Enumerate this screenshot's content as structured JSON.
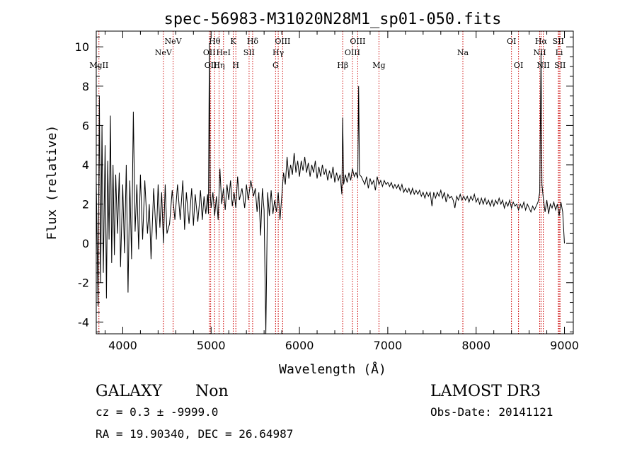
{
  "chart_data": {
    "type": "line",
    "title": "spec-56983-M31020N28M1_sp01-050.fits",
    "xlabel": "Wavelength (Å)",
    "ylabel": "Flux (relative)",
    "xlim": [
      3700,
      9100
    ],
    "ylim": [
      -4.6,
      10.8
    ],
    "xticks": [
      4000,
      5000,
      6000,
      7000,
      8000,
      9000
    ],
    "yticks": [
      -4,
      -2,
      0,
      2,
      4,
      6,
      8,
      10
    ],
    "xtick_labels": [
      "4000",
      "5000",
      "6000",
      "7000",
      "8000",
      "9000"
    ],
    "ytick_labels": [
      "-4",
      "-2",
      "0",
      "2",
      "4",
      "6",
      "8",
      "10"
    ],
    "grid": false,
    "series": [
      {
        "name": "spectrum",
        "color": "#000000",
        "points": [
          [
            3700,
            3.2
          ],
          [
            3720,
            -3.2
          ],
          [
            3735,
            7.5
          ],
          [
            3750,
            -2.0
          ],
          [
            3765,
            6.0
          ],
          [
            3780,
            -1.5
          ],
          [
            3800,
            5.0
          ],
          [
            3815,
            -2.8
          ],
          [
            3830,
            4.2
          ],
          [
            3845,
            0.2
          ],
          [
            3860,
            6.5
          ],
          [
            3875,
            -1.0
          ],
          [
            3890,
            4.0
          ],
          [
            3905,
            -0.6
          ],
          [
            3920,
            3.5
          ],
          [
            3940,
            0.5
          ],
          [
            3960,
            3.6
          ],
          [
            3975,
            -1.2
          ],
          [
            4000,
            3.0
          ],
          [
            4020,
            -0.5
          ],
          [
            4040,
            4.0
          ],
          [
            4060,
            -2.5
          ],
          [
            4080,
            3.2
          ],
          [
            4100,
            -0.8
          ],
          [
            4120,
            6.7
          ],
          [
            4140,
            0.6
          ],
          [
            4160,
            3.0
          ],
          [
            4180,
            -0.3
          ],
          [
            4200,
            3.5
          ],
          [
            4225,
            0.2
          ],
          [
            4250,
            3.2
          ],
          [
            4280,
            0.5
          ],
          [
            4300,
            2.0
          ],
          [
            4320,
            -0.8
          ],
          [
            4350,
            2.8
          ],
          [
            4380,
            0.2
          ],
          [
            4400,
            3.0
          ],
          [
            4420,
            0.8
          ],
          [
            4440,
            2.6
          ],
          [
            4460,
            0.0
          ],
          [
            4480,
            3.0
          ],
          [
            4500,
            0.5
          ],
          [
            4530,
            1.0
          ],
          [
            4560,
            2.7
          ],
          [
            4590,
            1.2
          ],
          [
            4620,
            3.0
          ],
          [
            4650,
            1.2
          ],
          [
            4680,
            3.2
          ],
          [
            4700,
            0.7
          ],
          [
            4720,
            2.6
          ],
          [
            4750,
            1.0
          ],
          [
            4780,
            2.8
          ],
          [
            4800,
            0.9
          ],
          [
            4820,
            2.5
          ],
          [
            4850,
            1.1
          ],
          [
            4880,
            2.7
          ],
          [
            4900,
            1.2
          ],
          [
            4920,
            2.4
          ],
          [
            4940,
            1.5
          ],
          [
            4960,
            2.5
          ],
          [
            4970,
            1.5
          ],
          [
            4980,
            10.2
          ],
          [
            4990,
            2.5
          ],
          [
            5000,
            1.8
          ],
          [
            5020,
            2.6
          ],
          [
            5040,
            1.4
          ],
          [
            5060,
            2.4
          ],
          [
            5080,
            1.2
          ],
          [
            5100,
            3.8
          ],
          [
            5120,
            2.0
          ],
          [
            5140,
            2.8
          ],
          [
            5160,
            1.7
          ],
          [
            5180,
            3.0
          ],
          [
            5200,
            2.2
          ],
          [
            5220,
            3.2
          ],
          [
            5240,
            1.9
          ],
          [
            5260,
            2.6
          ],
          [
            5280,
            1.8
          ],
          [
            5300,
            3.4
          ],
          [
            5320,
            2.2
          ],
          [
            5350,
            2.8
          ],
          [
            5380,
            1.8
          ],
          [
            5400,
            3.0
          ],
          [
            5420,
            2.2
          ],
          [
            5450,
            3.2
          ],
          [
            5480,
            2.4
          ],
          [
            5500,
            2.8
          ],
          [
            5520,
            1.6
          ],
          [
            5540,
            2.6
          ],
          [
            5560,
            0.4
          ],
          [
            5580,
            2.8
          ],
          [
            5600,
            1.7
          ],
          [
            5620,
            -4.6
          ],
          [
            5640,
            2.6
          ],
          [
            5660,
            1.4
          ],
          [
            5680,
            2.7
          ],
          [
            5700,
            1.5
          ],
          [
            5720,
            2.2
          ],
          [
            5740,
            1.6
          ],
          [
            5760,
            2.6
          ],
          [
            5780,
            1.2
          ],
          [
            5800,
            2.4
          ],
          [
            5820,
            3.6
          ],
          [
            5840,
            3.0
          ],
          [
            5860,
            4.4
          ],
          [
            5880,
            3.3
          ],
          [
            5900,
            4.0
          ],
          [
            5920,
            3.5
          ],
          [
            5940,
            4.6
          ],
          [
            5960,
            3.6
          ],
          [
            5980,
            4.2
          ],
          [
            6000,
            3.4
          ],
          [
            6020,
            4.2
          ],
          [
            6040,
            3.7
          ],
          [
            6060,
            4.4
          ],
          [
            6080,
            3.6
          ],
          [
            6100,
            4.1
          ],
          [
            6120,
            3.4
          ],
          [
            6140,
            4.0
          ],
          [
            6160,
            3.6
          ],
          [
            6180,
            4.2
          ],
          [
            6200,
            3.3
          ],
          [
            6220,
            3.9
          ],
          [
            6240,
            3.4
          ],
          [
            6260,
            4.0
          ],
          [
            6280,
            3.5
          ],
          [
            6300,
            3.8
          ],
          [
            6320,
            3.2
          ],
          [
            6340,
            3.7
          ],
          [
            6360,
            3.3
          ],
          [
            6380,
            3.9
          ],
          [
            6400,
            3.1
          ],
          [
            6420,
            3.6
          ],
          [
            6440,
            3.2
          ],
          [
            6460,
            3.5
          ],
          [
            6480,
            2.5
          ],
          [
            6490,
            6.4
          ],
          [
            6500,
            3.0
          ],
          [
            6520,
            3.5
          ],
          [
            6540,
            3.1
          ],
          [
            6560,
            3.6
          ],
          [
            6580,
            3.2
          ],
          [
            6600,
            3.8
          ],
          [
            6620,
            3.4
          ],
          [
            6640,
            3.6
          ],
          [
            6660,
            3.3
          ],
          [
            6670,
            8.0
          ],
          [
            6680,
            3.5
          ],
          [
            6700,
            3.4
          ],
          [
            6720,
            3.2
          ],
          [
            6740,
            3.0
          ],
          [
            6760,
            3.4
          ],
          [
            6780,
            2.8
          ],
          [
            6800,
            3.3
          ],
          [
            6820,
            3.0
          ],
          [
            6840,
            3.2
          ],
          [
            6860,
            2.7
          ],
          [
            6880,
            3.4
          ],
          [
            6900,
            3.0
          ],
          [
            6920,
            3.2
          ],
          [
            6940,
            2.9
          ],
          [
            6960,
            3.2
          ],
          [
            6980,
            3.0
          ],
          [
            7000,
            3.1
          ],
          [
            7020,
            2.9
          ],
          [
            7040,
            3.1
          ],
          [
            7060,
            2.8
          ],
          [
            7080,
            3.0
          ],
          [
            7100,
            2.8
          ],
          [
            7120,
            3.0
          ],
          [
            7140,
            2.7
          ],
          [
            7160,
            3.0
          ],
          [
            7180,
            2.6
          ],
          [
            7200,
            2.8
          ],
          [
            7220,
            2.6
          ],
          [
            7240,
            2.8
          ],
          [
            7260,
            2.5
          ],
          [
            7280,
            2.8
          ],
          [
            7300,
            2.5
          ],
          [
            7320,
            2.7
          ],
          [
            7340,
            2.5
          ],
          [
            7360,
            2.7
          ],
          [
            7380,
            2.4
          ],
          [
            7400,
            2.6
          ],
          [
            7420,
            2.3
          ],
          [
            7440,
            2.6
          ],
          [
            7460,
            2.4
          ],
          [
            7480,
            2.6
          ],
          [
            7500,
            1.9
          ],
          [
            7520,
            2.6
          ],
          [
            7540,
            2.3
          ],
          [
            7560,
            2.6
          ],
          [
            7580,
            2.4
          ],
          [
            7600,
            2.7
          ],
          [
            7620,
            2.3
          ],
          [
            7640,
            2.6
          ],
          [
            7660,
            2.1
          ],
          [
            7680,
            2.5
          ],
          [
            7700,
            2.3
          ],
          [
            7720,
            2.4
          ],
          [
            7740,
            2.2
          ],
          [
            7760,
            1.8
          ],
          [
            7780,
            2.4
          ],
          [
            7800,
            2.2
          ],
          [
            7820,
            2.5
          ],
          [
            7840,
            2.2
          ],
          [
            7860,
            2.4
          ],
          [
            7880,
            2.2
          ],
          [
            7900,
            2.4
          ],
          [
            7920,
            2.1
          ],
          [
            7940,
            2.4
          ],
          [
            7960,
            2.2
          ],
          [
            7980,
            2.5
          ],
          [
            8000,
            2.1
          ],
          [
            8020,
            2.3
          ],
          [
            8040,
            2.0
          ],
          [
            8060,
            2.3
          ],
          [
            8080,
            2.0
          ],
          [
            8100,
            2.3
          ],
          [
            8120,
            2.0
          ],
          [
            8140,
            2.2
          ],
          [
            8160,
            1.9
          ],
          [
            8180,
            2.2
          ],
          [
            8200,
            1.9
          ],
          [
            8220,
            2.2
          ],
          [
            8240,
            2.0
          ],
          [
            8260,
            2.3
          ],
          [
            8280,
            2.0
          ],
          [
            8300,
            2.2
          ],
          [
            8320,
            1.8
          ],
          [
            8340,
            2.1
          ],
          [
            8360,
            1.9
          ],
          [
            8380,
            2.2
          ],
          [
            8400,
            1.8
          ],
          [
            8420,
            2.1
          ],
          [
            8440,
            1.9
          ],
          [
            8460,
            2.0
          ],
          [
            8480,
            1.7
          ],
          [
            8500,
            2.0
          ],
          [
            8520,
            1.8
          ],
          [
            8540,
            2.1
          ],
          [
            8560,
            1.7
          ],
          [
            8580,
            2.0
          ],
          [
            8600,
            1.8
          ],
          [
            8620,
            1.6
          ],
          [
            8640,
            1.9
          ],
          [
            8660,
            1.7
          ],
          [
            8680,
            1.9
          ],
          [
            8700,
            2.1
          ],
          [
            8720,
            2.6
          ],
          [
            8735,
            9.7
          ],
          [
            8745,
            3.0
          ],
          [
            8760,
            2.3
          ],
          [
            8780,
            1.6
          ],
          [
            8800,
            2.2
          ],
          [
            8820,
            1.5
          ],
          [
            8840,
            2.0
          ],
          [
            8860,
            1.8
          ],
          [
            8880,
            2.1
          ],
          [
            8900,
            1.7
          ],
          [
            8920,
            2.0
          ],
          [
            8940,
            1.4
          ],
          [
            8960,
            2.1
          ],
          [
            8980,
            1.6
          ],
          [
            9000,
            0.0
          ]
        ]
      }
    ],
    "lines": [
      {
        "wavelength": 3730,
        "label": "MgII",
        "row": 3,
        "color": "#cc0000"
      },
      {
        "wavelength": 4460,
        "label": "NeV",
        "row": 2,
        "color": "#cc0000"
      },
      {
        "wavelength": 4570,
        "label": "NeV",
        "row": 1,
        "color": "#cc0000"
      },
      {
        "wavelength": 4980,
        "label": "OII",
        "row": 2,
        "color": "#cc0000"
      },
      {
        "wavelength": 4995,
        "label": "OII",
        "row": 3,
        "color": "#cc0000"
      },
      {
        "wavelength": 5040,
        "label": "Hθ",
        "row": 1,
        "color": "#cc0000"
      },
      {
        "wavelength": 5090,
        "label": "Hη",
        "row": 3,
        "color": "#cc0000"
      },
      {
        "wavelength": 5140,
        "label": "HeI",
        "row": 2,
        "color": "#cc0000"
      },
      {
        "wavelength": 5250,
        "label": "K",
        "row": 1,
        "color": "#cc0000"
      },
      {
        "wavelength": 5280,
        "label": "H",
        "row": 3,
        "color": "#cc0000"
      },
      {
        "wavelength": 5430,
        "label": "SII",
        "row": 2,
        "color": "#cc0000"
      },
      {
        "wavelength": 5470,
        "label": "Hδ",
        "row": 1,
        "color": "#cc0000"
      },
      {
        "wavelength": 5730,
        "label": "G",
        "row": 3,
        "color": "#cc0000"
      },
      {
        "wavelength": 5760,
        "label": "Hγ",
        "row": 2,
        "color": "#cc0000"
      },
      {
        "wavelength": 5810,
        "label": "OIII",
        "row": 1,
        "color": "#cc0000"
      },
      {
        "wavelength": 6490,
        "label": "Hβ",
        "row": 3,
        "color": "#cc0000"
      },
      {
        "wavelength": 6600,
        "label": "OIII",
        "row": 2,
        "color": "#cc0000"
      },
      {
        "wavelength": 6660,
        "label": "OIII",
        "row": 1,
        "color": "#cc0000"
      },
      {
        "wavelength": 6900,
        "label": "Mg",
        "row": 3,
        "color": "#cc0000"
      },
      {
        "wavelength": 7850,
        "label": "Na",
        "row": 2,
        "color": "#cc0000"
      },
      {
        "wavelength": 8400,
        "label": "OI",
        "row": 1,
        "color": "#cc0000"
      },
      {
        "wavelength": 8480,
        "label": "OI",
        "row": 3,
        "color": "#cc0000"
      },
      {
        "wavelength": 8720,
        "label": "NII",
        "row": 2,
        "color": "#cc0000"
      },
      {
        "wavelength": 8735,
        "label": "Hα",
        "row": 1,
        "color": "#cc0000"
      },
      {
        "wavelength": 8760,
        "label": "NII",
        "row": 3,
        "color": "#cc0000"
      },
      {
        "wavelength": 8930,
        "label": "SII",
        "row": 1,
        "color": "#cc0000"
      },
      {
        "wavelength": 8940,
        "label": "Li",
        "row": 2,
        "color": "#cc0000"
      },
      {
        "wavelength": 8950,
        "label": "SII",
        "row": 3,
        "color": "#cc0000"
      }
    ]
  },
  "info": {
    "class": "GALAXY",
    "subclass": "Non",
    "survey": "LAMOST DR3",
    "redshift": "cz = 0.3 ± -9999.0",
    "obs_date": "Obs-Date: 20141121",
    "coords": "RA =  19.90340, DEC =  26.64987"
  }
}
